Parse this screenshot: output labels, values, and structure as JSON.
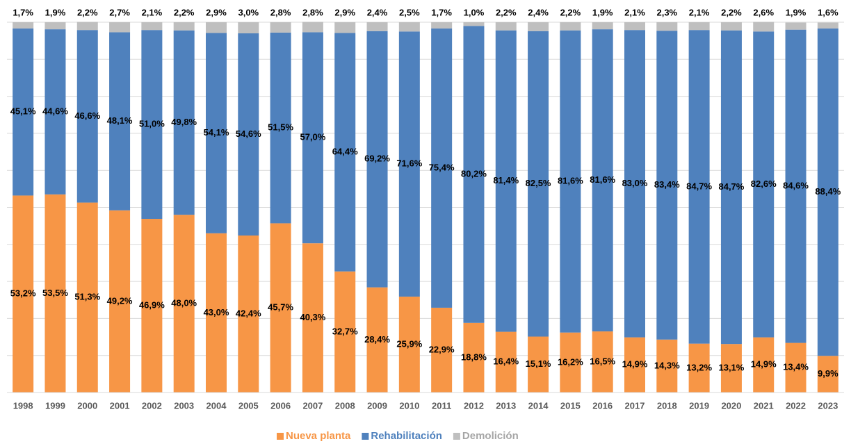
{
  "chart_data": {
    "type": "stacked-bar",
    "categories": [
      "1998",
      "1999",
      "2000",
      "2001",
      "2002",
      "2003",
      "2004",
      "2005",
      "2006",
      "2007",
      "2008",
      "2009",
      "2010",
      "2011",
      "2012",
      "2013",
      "2014",
      "2015",
      "2016",
      "2017",
      "2018",
      "2019",
      "2020",
      "2021",
      "2022",
      "2023"
    ],
    "series": [
      {
        "name": "Nueva planta",
        "color": "#f79646",
        "values": [
          53.2,
          53.5,
          51.3,
          49.2,
          46.9,
          48.0,
          43.0,
          42.4,
          45.7,
          40.3,
          32.7,
          28.4,
          25.9,
          22.9,
          18.8,
          16.4,
          15.1,
          16.2,
          16.5,
          14.9,
          14.3,
          13.2,
          13.1,
          14.9,
          13.4,
          9.9
        ],
        "value_labels": [
          "53,2%",
          "53,5%",
          "51,3%",
          "49,2%",
          "46,9%",
          "48,0%",
          "43,0%",
          "42,4%",
          "45,7%",
          "40,3%",
          "32,7%",
          "28,4%",
          "25,9%",
          "22,9%",
          "18,8%",
          "16,4%",
          "15,1%",
          "16,2%",
          "16,5%",
          "14,9%",
          "14,3%",
          "13,2%",
          "13,1%",
          "14,9%",
          "13,4%",
          "9,9%"
        ]
      },
      {
        "name": "Rehabilitación",
        "color": "#4f81bd",
        "values": [
          45.1,
          44.6,
          46.6,
          48.1,
          51.0,
          49.8,
          54.1,
          54.6,
          51.5,
          57.0,
          64.4,
          69.2,
          71.6,
          75.4,
          80.2,
          81.4,
          82.5,
          81.6,
          81.6,
          83.0,
          83.4,
          84.7,
          84.7,
          82.6,
          84.6,
          88.4
        ],
        "value_labels": [
          "45,1%",
          "44,6%",
          "46,6%",
          "48,1%",
          "51,0%",
          "49,8%",
          "54,1%",
          "54,6%",
          "51,5%",
          "57,0%",
          "64,4%",
          "69,2%",
          "71,6%",
          "75,4%",
          "80,2%",
          "81,4%",
          "82,5%",
          "81,6%",
          "81,6%",
          "83,0%",
          "83,4%",
          "84,7%",
          "84,7%",
          "82,6%",
          "84,6%",
          "88,4%"
        ]
      },
      {
        "name": "Demolición",
        "color": "#bfbfbf",
        "values": [
          1.7,
          1.9,
          2.2,
          2.7,
          2.1,
          2.2,
          2.9,
          3.0,
          2.8,
          2.8,
          2.9,
          2.4,
          2.5,
          1.7,
          1.0,
          2.2,
          2.4,
          2.2,
          1.9,
          2.1,
          2.3,
          2.1,
          2.2,
          2.6,
          1.9,
          1.6
        ],
        "value_labels": [
          "1,7%",
          "1,9%",
          "2,2%",
          "2,7%",
          "2,1%",
          "2,2%",
          "2,9%",
          "3,0%",
          "2,8%",
          "2,8%",
          "2,9%",
          "2,4%",
          "2,5%",
          "1,7%",
          "1,0%",
          "2,2%",
          "2,4%",
          "2,2%",
          "1,9%",
          "2,1%",
          "2,3%",
          "2,1%",
          "2,2%",
          "2,6%",
          "1,9%",
          "1,6%"
        ]
      }
    ],
    "ylim": [
      0,
      100
    ],
    "yticks": [
      0,
      10,
      20,
      30,
      40,
      50,
      60,
      70,
      80,
      90,
      100
    ],
    "show_tick_labels": false,
    "grid": true,
    "legend": "bottom"
  }
}
